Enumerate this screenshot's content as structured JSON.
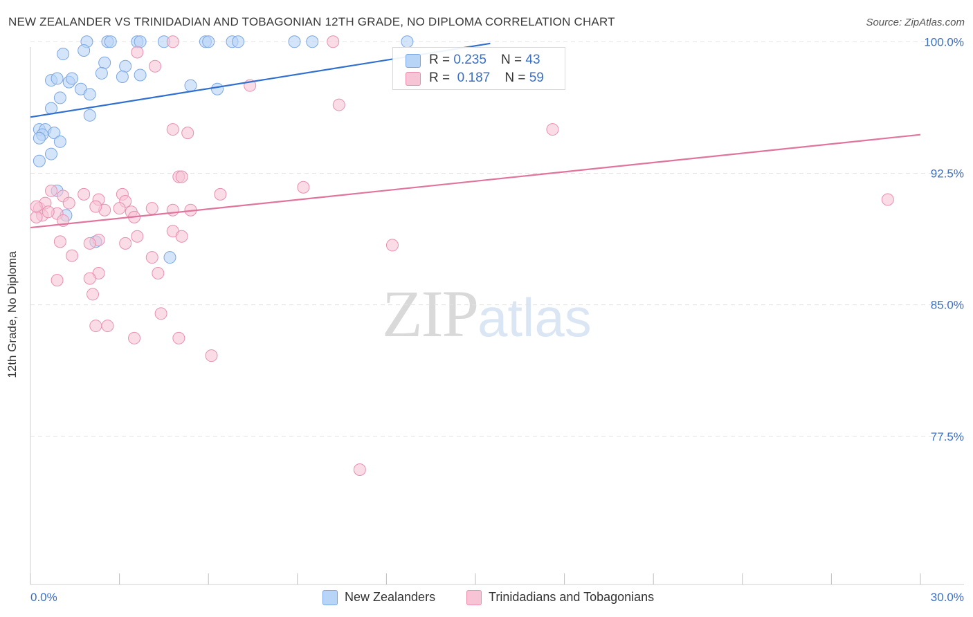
{
  "title": "NEW ZEALANDER VS TRINIDADIAN AND TOBAGONIAN 12TH GRADE, NO DIPLOMA CORRELATION CHART",
  "source": "Source: ZipAtlas.com",
  "watermark": {
    "zip": "ZIP",
    "atlas": "atlas"
  },
  "legend": {
    "series1": {
      "r_label": "R = ",
      "r_value": "0.235",
      "n_label": "N = ",
      "n_value": "43"
    },
    "series2": {
      "r_label": "R = ",
      "r_value": "0.187",
      "n_label": "N = ",
      "n_value": "59"
    }
  },
  "colors": {
    "blue_fill": "#b8d4f7",
    "blue_edge": "#7aa6e2",
    "blue_line": "#2f6fcf",
    "pink_fill": "#f7c4d6",
    "pink_edge": "#e98eb0",
    "pink_line": "#e0749c",
    "axis_label": "#3b6fc4",
    "grid": "#e2e2e2"
  },
  "chart_data": {
    "type": "scatter",
    "title": "NEW ZEALANDER VS TRINIDADIAN AND TOBAGONIAN 12TH GRADE, NO DIPLOMA CORRELATION CHART",
    "xlabel": "",
    "ylabel": "12th Grade, No Diploma",
    "xlim": [
      0.0,
      30.0
    ],
    "ylim": [
      70.0,
      100.8
    ],
    "x_tick_labels": [
      "0.0%",
      "30.0%"
    ],
    "y_ticks": [
      77.5,
      85.0,
      92.5,
      100.0
    ],
    "y_tick_labels": [
      "77.5%",
      "85.0%",
      "92.5%",
      "100.0%"
    ],
    "series": [
      {
        "name": "New Zealanders",
        "r": 0.235,
        "n": 43,
        "trend": {
          "x0": 0.0,
          "y0": 95.7,
          "x1": 15.5,
          "y1": 99.9
        },
        "points": [
          [
            1.9,
            100.0
          ],
          [
            2.6,
            100.0
          ],
          [
            2.7,
            100.0
          ],
          [
            3.6,
            100.0
          ],
          [
            3.7,
            100.0
          ],
          [
            4.5,
            100.0
          ],
          [
            5.9,
            100.0
          ],
          [
            6.0,
            100.0
          ],
          [
            6.8,
            100.0
          ],
          [
            7.0,
            100.0
          ],
          [
            8.9,
            100.0
          ],
          [
            9.5,
            100.0
          ],
          [
            12.7,
            100.0
          ],
          [
            1.1,
            99.3
          ],
          [
            1.8,
            99.5
          ],
          [
            2.5,
            98.8
          ],
          [
            3.2,
            98.6
          ],
          [
            2.4,
            98.2
          ],
          [
            3.1,
            98.0
          ],
          [
            3.7,
            98.1
          ],
          [
            0.7,
            97.8
          ],
          [
            0.9,
            97.9
          ],
          [
            1.3,
            97.7
          ],
          [
            1.4,
            97.9
          ],
          [
            5.4,
            97.5
          ],
          [
            6.3,
            97.3
          ],
          [
            1.7,
            97.3
          ],
          [
            2.0,
            97.0
          ],
          [
            1.0,
            96.8
          ],
          [
            0.7,
            96.2
          ],
          [
            2.0,
            95.8
          ],
          [
            0.3,
            95.0
          ],
          [
            0.5,
            95.0
          ],
          [
            0.4,
            94.7
          ],
          [
            0.8,
            94.8
          ],
          [
            0.3,
            94.5
          ],
          [
            1.0,
            94.3
          ],
          [
            0.7,
            93.6
          ],
          [
            0.3,
            93.2
          ],
          [
            0.9,
            91.5
          ],
          [
            1.2,
            90.1
          ],
          [
            2.2,
            88.6
          ],
          [
            4.7,
            87.7
          ]
        ]
      },
      {
        "name": "Trinidadians and Tobagonians",
        "r": 0.187,
        "n": 59,
        "trend": {
          "x0": 0.0,
          "y0": 89.4,
          "x1": 30.0,
          "y1": 94.7
        },
        "points": [
          [
            10.2,
            100.0
          ],
          [
            4.8,
            100.0
          ],
          [
            3.6,
            99.4
          ],
          [
            4.2,
            98.6
          ],
          [
            7.4,
            97.5
          ],
          [
            10.4,
            96.4
          ],
          [
            4.8,
            95.0
          ],
          [
            5.3,
            94.8
          ],
          [
            17.6,
            95.0
          ],
          [
            5.0,
            92.3
          ],
          [
            5.1,
            92.3
          ],
          [
            9.2,
            91.7
          ],
          [
            28.9,
            91.0
          ],
          [
            0.7,
            91.5
          ],
          [
            1.1,
            91.2
          ],
          [
            1.3,
            90.8
          ],
          [
            1.8,
            91.3
          ],
          [
            2.3,
            91.0
          ],
          [
            3.1,
            91.3
          ],
          [
            3.2,
            90.9
          ],
          [
            3.0,
            90.5
          ],
          [
            2.5,
            90.4
          ],
          [
            2.2,
            90.6
          ],
          [
            3.4,
            90.3
          ],
          [
            4.1,
            90.5
          ],
          [
            4.8,
            90.4
          ],
          [
            5.4,
            90.4
          ],
          [
            6.4,
            91.3
          ],
          [
            0.3,
            90.5
          ],
          [
            0.5,
            90.8
          ],
          [
            0.9,
            90.2
          ],
          [
            0.4,
            90.1
          ],
          [
            0.2,
            90.0
          ],
          [
            1.1,
            89.8
          ],
          [
            2.3,
            88.7
          ],
          [
            3.2,
            88.5
          ],
          [
            3.6,
            88.9
          ],
          [
            4.8,
            89.2
          ],
          [
            5.1,
            88.9
          ],
          [
            12.2,
            88.4
          ],
          [
            1.4,
            87.8
          ],
          [
            4.1,
            87.7
          ],
          [
            4.3,
            86.8
          ],
          [
            2.3,
            86.8
          ],
          [
            2.0,
            86.5
          ],
          [
            0.9,
            86.4
          ],
          [
            2.1,
            85.6
          ],
          [
            4.4,
            84.5
          ],
          [
            2.2,
            83.8
          ],
          [
            2.6,
            83.8
          ],
          [
            3.5,
            83.1
          ],
          [
            5.0,
            83.1
          ],
          [
            6.1,
            82.1
          ],
          [
            11.1,
            75.6
          ],
          [
            0.2,
            90.6
          ],
          [
            0.6,
            90.3
          ],
          [
            1.0,
            88.6
          ],
          [
            2.0,
            88.5
          ],
          [
            3.5,
            90.0
          ]
        ]
      }
    ]
  }
}
